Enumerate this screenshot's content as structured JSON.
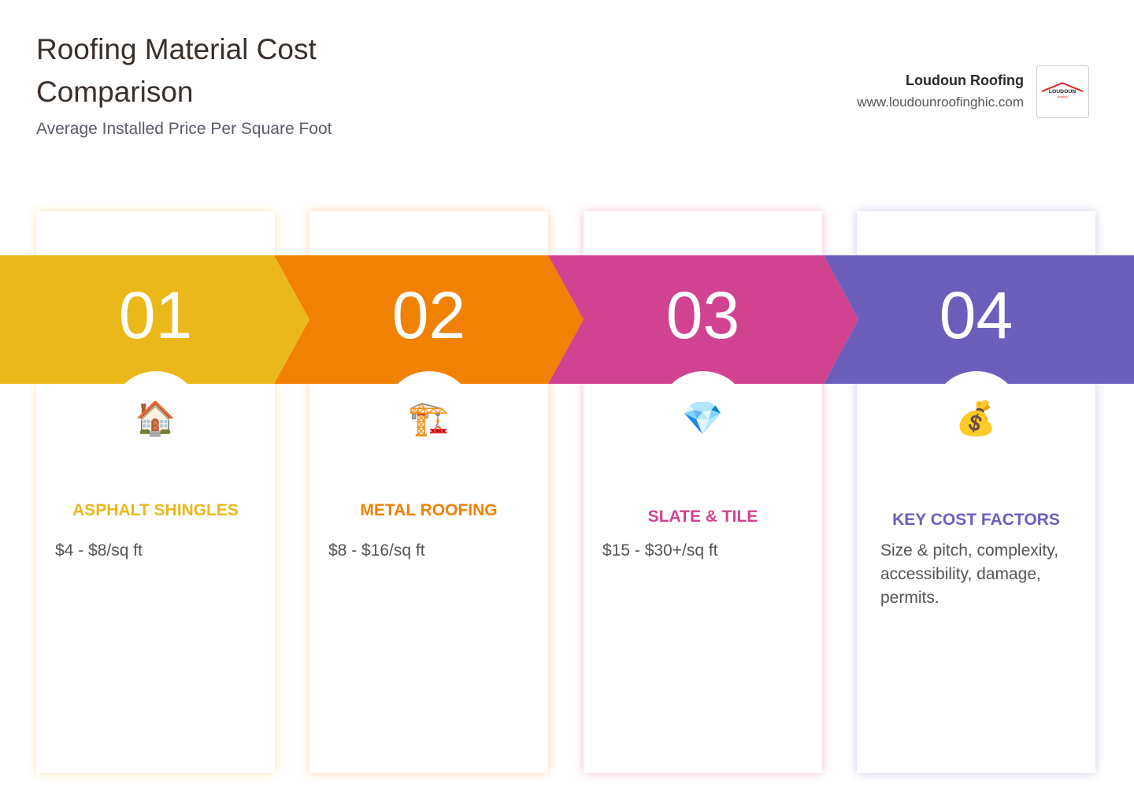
{
  "header": {
    "title": "Roofing Material Cost Comparison",
    "subtitle": "Average Installed Price Per Square Foot"
  },
  "brand": {
    "name": "Loudoun Roofing",
    "url": "www.loudounroofinghic.com",
    "logo": {
      "top": "LOUDOUN",
      "bottom": "Roofing"
    }
  },
  "cards": [
    {
      "number": "01",
      "icon": "🏠",
      "title": "ASPHALT SHINGLES",
      "text": "$4 - $8/sq ft"
    },
    {
      "number": "02",
      "icon": "🏗️",
      "title": "METAL ROOFING",
      "text": "$8 - $16/sq ft"
    },
    {
      "number": "03",
      "icon": "💎",
      "title": "SLATE & TILE",
      "text": "$15 - $30+/sq ft"
    },
    {
      "number": "04",
      "icon": "💰",
      "title": "KEY COST FACTORS",
      "text": "Size & pitch, complexity, accessibility, damage, permits."
    }
  ]
}
